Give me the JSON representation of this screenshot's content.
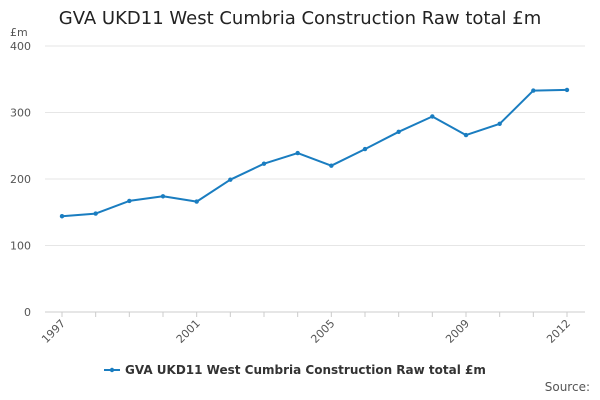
{
  "chart_data": {
    "type": "line",
    "title": "GVA UKD11 West Cumbria Construction Raw total £m",
    "xlabel": "",
    "ylabel": "£m",
    "x": [
      1997,
      1998,
      1999,
      2000,
      2001,
      2002,
      2003,
      2004,
      2005,
      2006,
      2007,
      2008,
      2009,
      2010,
      2011,
      2012
    ],
    "x_tick_labels": [
      "1997",
      "2001",
      "2005",
      "2009",
      "2012"
    ],
    "y_ticks": [
      0,
      100,
      200,
      300,
      400
    ],
    "ylim": [
      0,
      400
    ],
    "grid": true,
    "legend_position": "bottom",
    "series": [
      {
        "name": "GVA UKD11 West Cumbria Construction Raw total £m",
        "color": "#1a7dc0",
        "values": [
          144,
          148,
          167,
          174,
          166,
          199,
          223,
          239,
          220,
          245,
          271,
          294,
          266,
          283,
          333,
          334
        ]
      }
    ]
  },
  "footer": {
    "source_label": "Source:"
  }
}
